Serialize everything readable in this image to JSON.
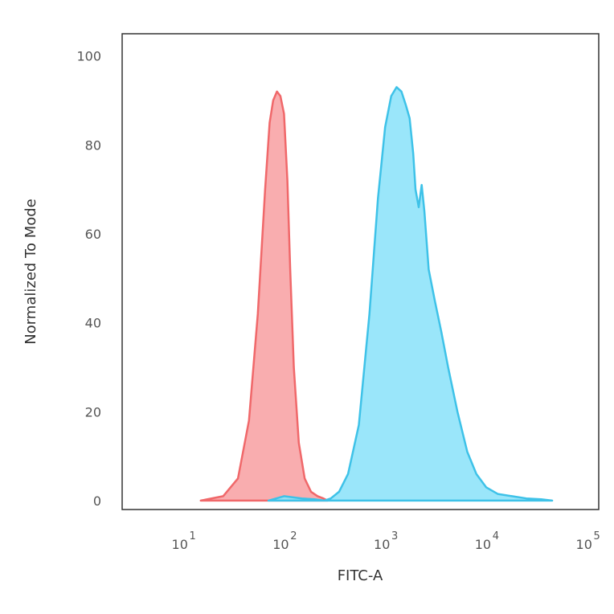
{
  "chart_data": {
    "type": "area",
    "xlabel": "FITC-A",
    "ylabel": "Normalized To Mode",
    "x_scale": "log",
    "xlim": [
      2.5,
      130000
    ],
    "ylim": [
      -2,
      105
    ],
    "x_ticks": [
      {
        "value": 10,
        "base": "10",
        "exp": "1"
      },
      {
        "value": 100,
        "base": "10",
        "exp": "2"
      },
      {
        "value": 1000,
        "base": "10",
        "exp": "3"
      },
      {
        "value": 10000,
        "base": "10",
        "exp": "4"
      },
      {
        "value": 100000,
        "base": "10",
        "exp": "5"
      }
    ],
    "y_ticks": [
      "0",
      "20",
      "40",
      "60",
      "80",
      "100"
    ],
    "grid": false,
    "legend": "none",
    "series": [
      {
        "color": "#f0686a",
        "fill": "#f8a4a6",
        "x": [
          15,
          25,
          35,
          45,
          55,
          65,
          72,
          78,
          85,
          92,
          100,
          108,
          115,
          125,
          140,
          160,
          185,
          215,
          245,
          270
        ],
        "y": [
          0,
          1,
          5,
          18,
          42,
          70,
          85,
          90,
          92,
          91,
          87,
          72,
          52,
          30,
          13,
          5,
          2,
          1,
          0.5,
          0
        ]
      },
      {
        "color": "#3ec2e8",
        "fill": "#8fe3f9",
        "x": [
          70,
          100,
          150,
          200,
          250,
          290,
          350,
          430,
          550,
          700,
          850,
          1000,
          1150,
          1300,
          1450,
          1600,
          1750,
          1900,
          2000,
          2150,
          2300,
          2450,
          2700,
          3100,
          3600,
          4200,
          5200,
          6500,
          8000,
          10000,
          13000,
          18000,
          25000,
          35000,
          45000
        ],
        "y": [
          0,
          1,
          0.5,
          0.3,
          0,
          0.5,
          2,
          6,
          17,
          42,
          68,
          84,
          91,
          93,
          92,
          89,
          86,
          78,
          70,
          66,
          71,
          65,
          52,
          45,
          38,
          30,
          20,
          11,
          6,
          3,
          1.5,
          1,
          0.5,
          0.3,
          0
        ]
      }
    ]
  }
}
